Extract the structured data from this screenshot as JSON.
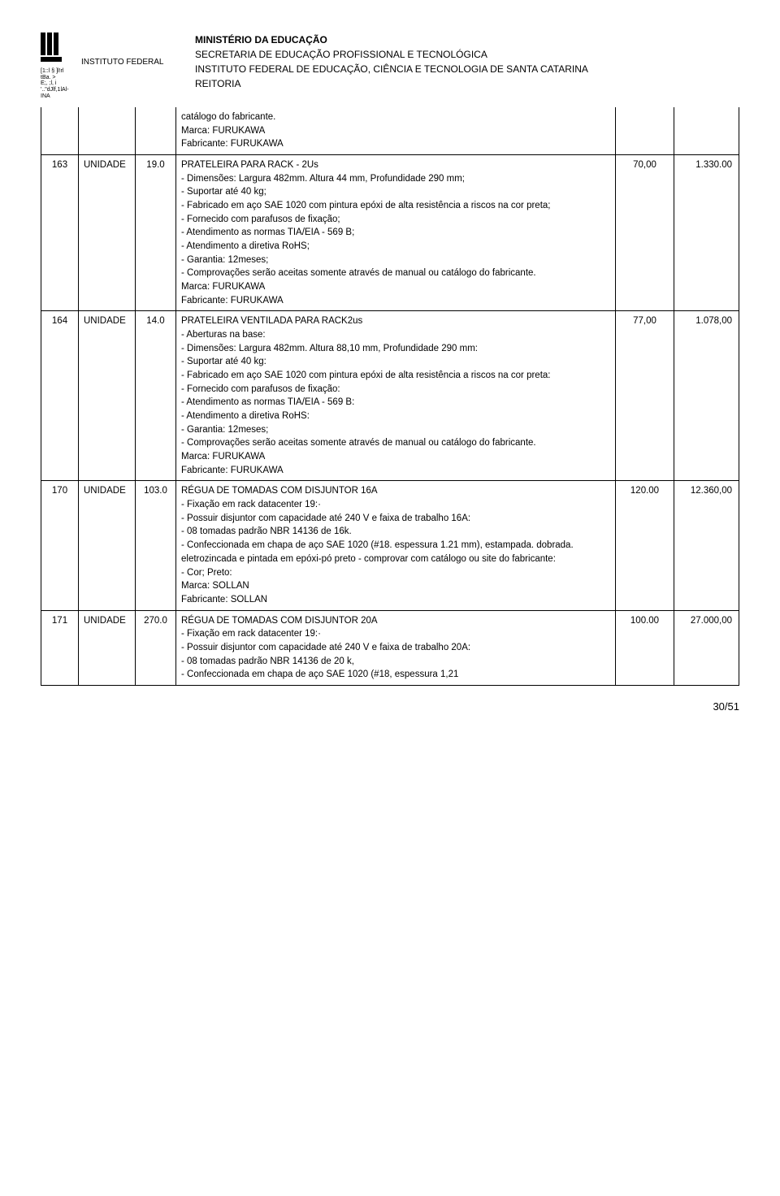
{
  "header": {
    "logo_small_lines": [
      "[1::l § ]l!rl",
      "tBa. >",
      "E;, ;l, i   '..\"dJlf,1lAl-INA"
    ],
    "inst_label_1": "INSTITUTO FEDERAL",
    "line1": "MINISTÉRIO DA EDUCAÇÃO",
    "line2": "SECRETARIA DE EDUCAÇÃO PROFISSIONAL E TECNOLÓGICA",
    "line3": "INSTITUTO FEDERAL DE EDUCAÇÃO, CIÊNCIA E TECNOLOGIA DE SANTA CATARINA",
    "line4": "REITORIA"
  },
  "rows": [
    {
      "num": "",
      "unit": "",
      "qty": "",
      "desc": [
        "catálogo do fabricante.",
        "Marca: FURUKAWA",
        "Fabricante: FURUKAWA"
      ],
      "v1": "",
      "v2": "",
      "continuation": true
    },
    {
      "num": "163",
      "unit": "UNIDADE",
      "qty": "19.0",
      "desc": [
        "PRATELEIRA PARA RACK - 2Us",
        "- Dimensões: Largura 482mm. Altura 44 mm, Profundidade 290 mm;",
        "- Suportar até 40 kg;",
        "- Fabricado em aço SAE 1020 com pintura epóxi de alta resistência a riscos na cor preta;",
        "- Fornecido com parafusos de fixação;",
        "- Atendimento as normas TIA/EIA - 569 B;",
        "- Atendimento a diretiva RoHS;",
        "- Garantia: 12meses;",
        "- Comprovações serão aceitas somente através de manual   ou catálogo do fabricante.",
        "Marca: FURUKAWA",
        "Fabricante: FURUKAWA"
      ],
      "v1": "70,00",
      "v2": "1.330.00"
    },
    {
      "num": "164",
      "unit": "UNIDADE",
      "qty": "14.0",
      "desc": [
        "PRATELEIRA VENTILADA PARA RACK2us",
        "- Aberturas na base:",
        "- Dimensões: Largura 482mm. Altura 88,10 mm, Profundidade 290 mm:",
        "- Suportar até 40 kg:",
        "- Fabricado em aço SAE 1020 com pintura epóxi de alta resistência a riscos na cor preta:",
        "- Fornecido com parafusos de fixação:",
        "- Atendimento as normas TIA/EIA - 569 B:",
        "- Atendimento a diretiva RoHS:",
        "- Garantia: 12meses;",
        "- Comprovações serão aceitas somente através de manual ou catálogo  do fabricante.",
        "Marca: FURUKAWA",
        "Fabricante: FURUKAWA"
      ],
      "v1": "77,00",
      "v2": "1.078,00"
    },
    {
      "num": "170",
      "unit": "UNIDADE",
      "qty": "103.0",
      "desc": [
        "RÉGUA DE TOMADAS COM DISJUNTOR 16A",
        "- Fixação em rack datacenter 19:·",
        "- Possuir disjuntor com capacidade até 240 V e faixa de trabalho 16A:",
        "- 08 tomadas padrão NBR 14136 de 16k.",
        "- Confeccionada em chapa de aço SAE 1020 (#18. espessura 1.21 mm), estampada. dobrada. eletrozincada e pintada em epóxi-pó preto - comprovar com catálogo ou site do  fabricante:",
        "- Cor; Preto:",
        "Marca: SOLLAN",
        "Fabricante: SOLLAN"
      ],
      "v1": "120.00",
      "v2": "12.360,00"
    },
    {
      "num": "171",
      "unit": "UNIDADE",
      "qty": "270.0",
      "desc": [
        "RÉGUA DE TOMADAS COM DISJUNTOR 20A",
        "- Fixação em rack datacenter 19:·",
        "- Possuir disjuntor com capacidade  até 240 V  e faixa de trabalho 20A:",
        "- 08 tomadas padrão NBR 14136 de 20 k,",
        "- Confeccionada em chapa de aço SAE 1020 (#18, espessura 1,21"
      ],
      "v1": "100.00",
      "v2": "27.000,00"
    }
  ],
  "footer": {
    "page": "30/51"
  }
}
